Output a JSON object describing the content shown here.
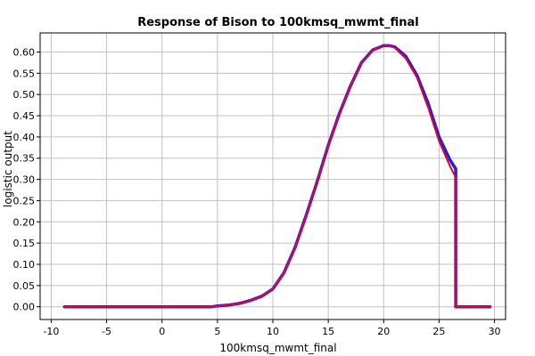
{
  "chart_data": {
    "type": "line",
    "title": "Response of Bison to 100kmsq_mwmt_final",
    "xlabel": "100kmsq_mwmt_final",
    "ylabel": "logistic output",
    "xlim": [
      -11,
      31
    ],
    "ylim": [
      -0.03,
      0.645
    ],
    "x_ticks": [
      -10,
      -5,
      0,
      5,
      10,
      15,
      20,
      25,
      30
    ],
    "x_tick_labels": [
      "-10",
      "-5",
      "0",
      "5",
      "10",
      "15",
      "20",
      "25",
      "30"
    ],
    "y_ticks": [
      0.0,
      0.05,
      0.1,
      0.15,
      0.2,
      0.25,
      0.3,
      0.35,
      0.4,
      0.45,
      0.5,
      0.55,
      0.6
    ],
    "y_tick_labels": [
      "0.00",
      "0.05",
      "0.10",
      "0.15",
      "0.20",
      "0.25",
      "0.30",
      "0.35",
      "0.40",
      "0.45",
      "0.50",
      "0.55",
      "0.60"
    ],
    "grid": true,
    "legend": "none",
    "series": [
      {
        "color": "#2222cc",
        "x": [
          -8.8,
          4.5,
          5.0,
          6.0,
          7.0,
          8.0,
          9.0,
          10.0,
          11.0,
          12.0,
          13.0,
          14.0,
          15.0,
          16.0,
          17.0,
          18.0,
          19.0,
          20.0,
          20.5,
          21.0,
          22.0,
          23.0,
          24.0,
          25.0,
          26.0,
          26.5,
          26.5,
          26.7,
          29.6
        ],
        "y": [
          0.0,
          0.0,
          0.002,
          0.004,
          0.008,
          0.015,
          0.025,
          0.042,
          0.08,
          0.14,
          0.215,
          0.295,
          0.38,
          0.455,
          0.52,
          0.575,
          0.605,
          0.615,
          0.615,
          0.612,
          0.59,
          0.545,
          0.48,
          0.4,
          0.345,
          0.325,
          0.0,
          0.0,
          0.0
        ]
      },
      {
        "color": "#e0004a",
        "x": [
          -8.8,
          4.5,
          5.0,
          6.0,
          7.0,
          8.0,
          9.0,
          10.0,
          11.0,
          12.0,
          13.0,
          14.0,
          15.0,
          16.0,
          17.0,
          18.0,
          19.0,
          20.0,
          20.5,
          21.0,
          22.0,
          23.0,
          24.0,
          25.0,
          26.0,
          26.5,
          26.5,
          26.7,
          29.6
        ],
        "y": [
          0.0,
          0.0,
          0.002,
          0.004,
          0.008,
          0.015,
          0.025,
          0.042,
          0.08,
          0.14,
          0.215,
          0.295,
          0.38,
          0.455,
          0.52,
          0.575,
          0.605,
          0.615,
          0.615,
          0.61,
          0.585,
          0.54,
          0.47,
          0.39,
          0.33,
          0.305,
          0.0,
          0.0,
          0.0
        ]
      }
    ]
  }
}
